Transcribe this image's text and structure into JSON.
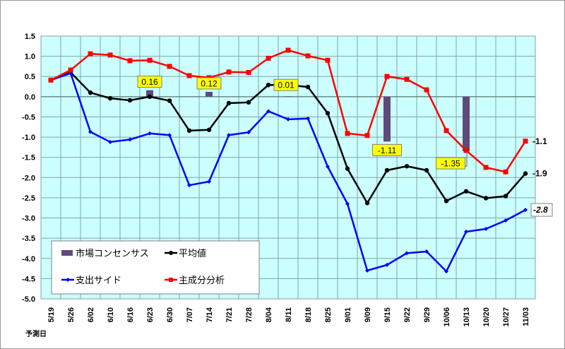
{
  "chart_data": {
    "type": "line",
    "title": "",
    "xlabel": "予測日",
    "ylabel": "",
    "ylim": [
      -5.0,
      1.5
    ],
    "yticks": [
      "1.5",
      "1.0",
      "0.5",
      "0.0",
      "-0.5",
      "-1.0",
      "-1.5",
      "-2.0",
      "-2.5",
      "-3.0",
      "-3.5",
      "-4.0",
      "-4.5",
      "-5.0"
    ],
    "grid": true,
    "legend_position": "bottom-left",
    "categories": [
      "5/19",
      "5/26",
      "6/02",
      "6/10",
      "6/16",
      "6/23",
      "6/30",
      "7/07",
      "7/14",
      "7/21",
      "7/28",
      "8/04",
      "8/11",
      "8/18",
      "8/25",
      "9/01",
      "9/09",
      "9/15",
      "9/22",
      "9/29",
      "10/06",
      "10/13",
      "10/20",
      "10/27",
      "11/03"
    ],
    "bars": {
      "name": "市場コンセンサス",
      "color": "#604a7b",
      "points": [
        {
          "category": "6/23",
          "value": 0.16,
          "label": "0.16"
        },
        {
          "category": "7/14",
          "value": 0.12,
          "label": "0.12"
        },
        {
          "category": "8/11",
          "value": 0.01,
          "label": "0.01"
        },
        {
          "category": "9/15",
          "value": -1.11,
          "label": "-1.11"
        },
        {
          "category": "10/13",
          "value": -1.35,
          "label": "-1.35"
        }
      ]
    },
    "series": [
      {
        "name": "平均値",
        "color": "#000000",
        "marker": "circle",
        "end_label": "-1.9",
        "values": [
          0.41,
          0.6,
          0.1,
          -0.04,
          -0.09,
          0.0,
          -0.1,
          -0.84,
          -0.82,
          -0.16,
          -0.14,
          0.29,
          0.29,
          0.24,
          -0.41,
          -1.78,
          -2.63,
          -1.82,
          -1.72,
          -1.82,
          -2.58,
          -2.34,
          -2.51,
          -2.46,
          -1.9
        ]
      },
      {
        "name": "支出サイド",
        "color": "#0000ff",
        "marker": "diamond",
        "end_label": "-2.8",
        "values": [
          0.41,
          0.58,
          -0.87,
          -1.12,
          -1.06,
          -0.91,
          -0.95,
          -2.19,
          -2.1,
          -0.95,
          -0.88,
          -0.36,
          -0.56,
          -0.54,
          -1.73,
          -2.65,
          -4.3,
          -4.16,
          -3.87,
          -3.83,
          -4.32,
          -3.34,
          -3.27,
          -3.06,
          -2.8
        ]
      },
      {
        "name": "主成分分析",
        "color": "#ff0000",
        "marker": "square",
        "end_label": "-1.1",
        "values": [
          0.41,
          0.66,
          1.06,
          1.03,
          0.89,
          0.9,
          0.75,
          0.52,
          0.47,
          0.61,
          0.6,
          0.95,
          1.15,
          1.01,
          0.9,
          -0.91,
          -0.96,
          0.5,
          0.43,
          0.17,
          -0.84,
          -1.33,
          -1.75,
          -1.86,
          -1.1
        ]
      }
    ],
    "plot_bg": "#ccffff",
    "label_bg": "#ffff00"
  }
}
